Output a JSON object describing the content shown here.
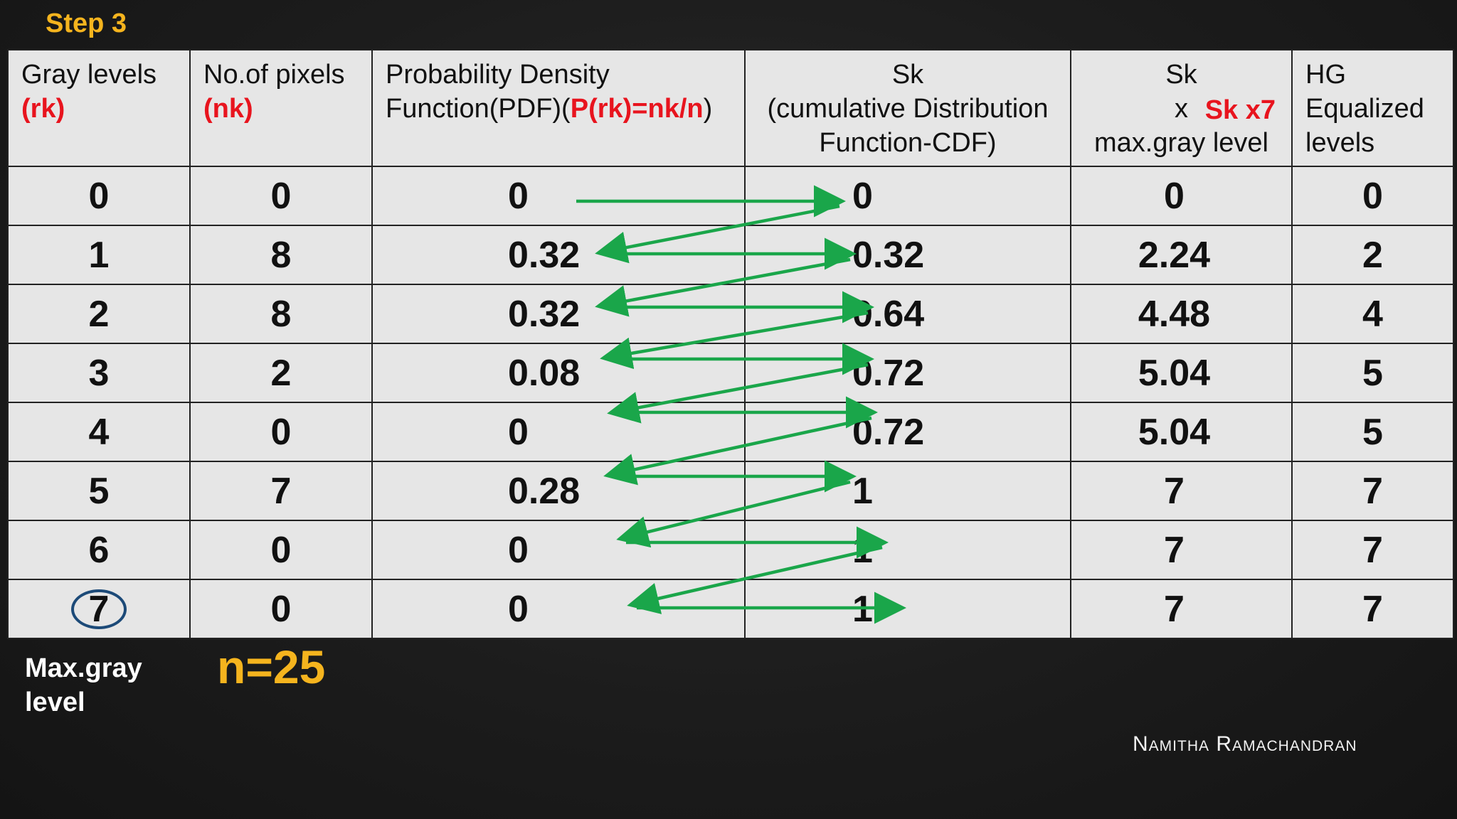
{
  "step_title": "Step 3",
  "table": {
    "headers": {
      "gray_levels": {
        "line1": "Gray levels",
        "line2": "(rk)"
      },
      "num_pixels": {
        "line1": "No.of pixels",
        "line2": "(nk)"
      },
      "pdf": {
        "line1": "Probability Density",
        "line2_prefix": "Function(PDF)(",
        "line2_formula": "P(rk)=nk/n",
        "line2_suffix": ")"
      },
      "sk": {
        "line1": "Sk",
        "line2": "(cumulative Distribution",
        "line3": "Function-CDF)"
      },
      "scaled": {
        "line1": "Sk",
        "line2": "x",
        "multiplier": "Sk x7",
        "line3": "max.gray level"
      },
      "hg": {
        "line1": "HG",
        "line2": "Equalized",
        "line3": "levels"
      }
    },
    "rows": [
      {
        "rk": "0",
        "nk": "0",
        "pdf": "0",
        "sk": "0",
        "scaled": "0",
        "hg": "0"
      },
      {
        "rk": "1",
        "nk": "8",
        "pdf": "0.32",
        "sk": "0.32",
        "scaled": "2.24",
        "hg": "2"
      },
      {
        "rk": "2",
        "nk": "8",
        "pdf": "0.32",
        "sk": "0.64",
        "scaled": "4.48",
        "hg": "4"
      },
      {
        "rk": "3",
        "nk": "2",
        "pdf": "0.08",
        "sk": "0.72",
        "scaled": "5.04",
        "hg": "5"
      },
      {
        "rk": "4",
        "nk": "0",
        "pdf": "0",
        "sk": "0.72",
        "scaled": "5.04",
        "hg": "5"
      },
      {
        "rk": "5",
        "nk": "7",
        "pdf": "0.28",
        "sk": "1",
        "scaled": "7",
        "hg": "7"
      },
      {
        "rk": "6",
        "nk": "0",
        "pdf": "0",
        "sk": "1",
        "scaled": "7",
        "hg": "7"
      },
      {
        "rk": "7",
        "nk": "0",
        "pdf": "0",
        "sk": "1",
        "scaled": "7",
        "hg": "7"
      }
    ]
  },
  "max_gray_label": "Max.gray level",
  "n_total": "n=25",
  "author": "Namitha Ramachandran",
  "colors": {
    "accent_yellow": "#f5b41e",
    "formula_red": "#e8141e",
    "arrow_green": "#1aa64a",
    "circle_blue": "#1c4a78"
  }
}
